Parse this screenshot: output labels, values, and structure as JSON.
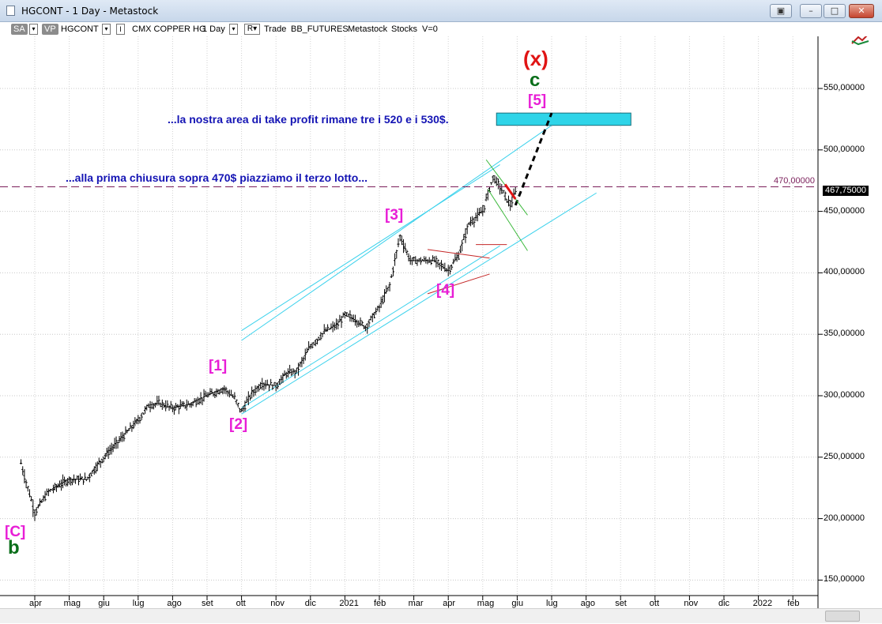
{
  "window": {
    "title": "HGCONT - 1 Day - Metastock"
  },
  "toolbar": {
    "sa": "SA",
    "vp": "VP",
    "symbol": "HGCONT",
    "series_button": "I",
    "instrument": "CMX COPPER HG",
    "period": "1 Day",
    "r_button": "R",
    "type": "Trade",
    "source": "BB_FUTURES",
    "provider": "Metastock",
    "category": "Stocks",
    "volume": "V=0"
  },
  "colors": {
    "wave_magenta": "#e81ed6",
    "wave_green": "#0a6e1a",
    "wave_red": "#e01414",
    "channel_cyan": "#3cd2ec",
    "note_blue": "#1414b4",
    "level_purple": "#7a1e5a",
    "target_box": "#2ed4e8"
  },
  "chart_data": {
    "type": "ohlc",
    "instrument": "CMX COPPER HG",
    "ylim": [
      138,
      600
    ],
    "y_ticks": [
      150,
      200,
      250,
      300,
      350,
      400,
      450,
      500,
      550
    ],
    "y_tick_labels": [
      "150,00000",
      "200,00000",
      "250,00000",
      "300,00000",
      "350,00000",
      "400,00000",
      "450,00000",
      "500,00000",
      "550,00000"
    ],
    "x_ticks": [
      "apr",
      "mag",
      "giu",
      "lug",
      "ago",
      "set",
      "ott",
      "nov",
      "dic",
      "2021",
      "feb",
      "mar",
      "apr",
      "mag",
      "giu",
      "lug",
      "ago",
      "set",
      "ott",
      "nov",
      "dic",
      "2022",
      "feb"
    ],
    "x_tick_month_index": [
      0,
      1,
      2,
      3,
      4,
      5,
      6,
      7,
      8,
      9,
      10,
      11,
      12,
      13,
      14,
      15,
      16,
      17,
      18,
      19,
      20,
      21,
      22
    ],
    "price_path": [
      [
        -0.4,
        245
      ],
      [
        0.0,
        205
      ],
      [
        0.4,
        222
      ],
      [
        1.0,
        232
      ],
      [
        1.5,
        232
      ],
      [
        2.0,
        250
      ],
      [
        2.5,
        265
      ],
      [
        3.0,
        280
      ],
      [
        3.3,
        292
      ],
      [
        3.6,
        294
      ],
      [
        4.0,
        290
      ],
      [
        4.5,
        293
      ],
      [
        5.0,
        300
      ],
      [
        5.5,
        306
      ],
      [
        5.8,
        298
      ],
      [
        6.0,
        287
      ],
      [
        6.3,
        302
      ],
      [
        6.6,
        310
      ],
      [
        7.0,
        308
      ],
      [
        7.3,
        318
      ],
      [
        7.6,
        320
      ],
      [
        8.0,
        340
      ],
      [
        8.4,
        352
      ],
      [
        8.8,
        358
      ],
      [
        9.0,
        366
      ],
      [
        9.3,
        362
      ],
      [
        9.6,
        356
      ],
      [
        10.0,
        372
      ],
      [
        10.3,
        390
      ],
      [
        10.6,
        430
      ],
      [
        10.9,
        410
      ],
      [
        11.2,
        410
      ],
      [
        11.6,
        410
      ],
      [
        12.0,
        402
      ],
      [
        12.3,
        414
      ],
      [
        12.6,
        440
      ],
      [
        13.0,
        450
      ],
      [
        13.3,
        478
      ],
      [
        13.5,
        470
      ],
      [
        13.8,
        455
      ],
      [
        14.0,
        468
      ]
    ],
    "last_price": 467.75,
    "last_price_label": "467,75000",
    "level": 470,
    "level_label": "470,00000",
    "target_zone": {
      "from": 520,
      "to": 530,
      "x_range": [
        13.4,
        17.3
      ]
    },
    "channel": {
      "lower": [
        [
          6.0,
          290
        ],
        [
          13.5,
          422
        ]
      ],
      "upper": [
        [
          6.0,
          353
        ],
        [
          13.5,
          488
        ]
      ],
      "outer_top": [
        [
          6.0,
          345
        ],
        [
          15.0,
          520
        ]
      ],
      "outer_bottom": [
        [
          6.0,
          285
        ],
        [
          16.3,
          465
        ]
      ]
    },
    "projection": [
      [
        13.95,
        455
      ],
      [
        15.0,
        530
      ]
    ],
    "triangle": {
      "apex_x": 13.3,
      "points": [
        [
          11.4,
          419
        ],
        [
          13.2,
          412
        ],
        [
          11.4,
          383
        ],
        [
          13.2,
          399
        ]
      ]
    },
    "wave_labels": [
      {
        "label": "[C]",
        "x": -0.4,
        "y": 190
      },
      {
        "label": "b",
        "x": -0.4,
        "y": 175
      },
      {
        "label": "[1]",
        "x": 5.6,
        "y": 322
      },
      {
        "label": "[2]",
        "x": 6.1,
        "y": 276
      },
      {
        "label": "[3]",
        "x": 11.0,
        "y": 444
      },
      {
        "label": "[4]",
        "x": 12.5,
        "y": 397
      },
      {
        "label": "[5]",
        "x": 15.0,
        "y": 540
      },
      {
        "label": "c",
        "x": 15.0,
        "y": 556
      },
      {
        "label": "(x)",
        "x": 15.0,
        "y": 577
      }
    ]
  },
  "annotations": {
    "note1": "...la nostra area di take profit rimane tre i 520 e i 530$.",
    "note2": "...alla prima chiusura sopra 470$ piazziamo il terzo lotto...",
    "wave_c_upper": "[C]",
    "wave_b": "b",
    "wave_1": "[1]",
    "wave_2": "[2]",
    "wave_3": "[3]",
    "wave_4": "[4]",
    "wave_5": "[5]",
    "wave_c": "c",
    "wave_x": "(x)"
  }
}
